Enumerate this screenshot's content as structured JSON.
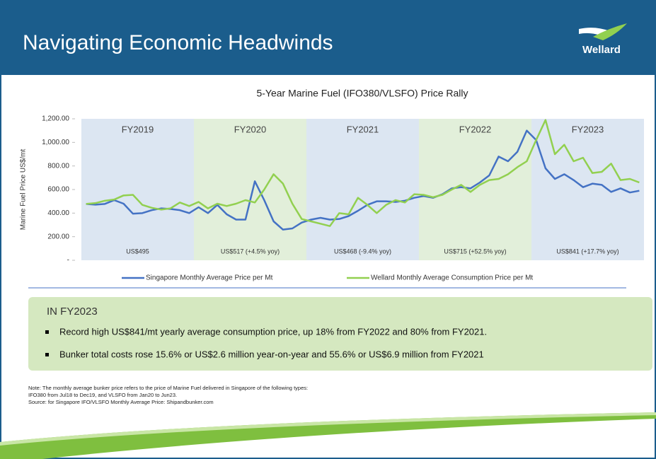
{
  "header": {
    "title": "Navigating Economic Headwinds",
    "logo": "Wellard"
  },
  "chart_data": {
    "type": "line",
    "title": "5-Year Marine Fuel (IFO380/VLSFO) Price Rally",
    "y_label": "Marine Fuel Price US$/mt",
    "categories": [
      null,
      null,
      null,
      null,
      null,
      null,
      null,
      null,
      null,
      null,
      null,
      null,
      null,
      null,
      null,
      null,
      null,
      null,
      null,
      null,
      null,
      null,
      null,
      null,
      null,
      null,
      null,
      null,
      null,
      null,
      null,
      null,
      null,
      null,
      null,
      null,
      null,
      null,
      null,
      null,
      null,
      null,
      null,
      null,
      null,
      null,
      null,
      null,
      null,
      null,
      null,
      null,
      null,
      null,
      null,
      null,
      null,
      null,
      null,
      null
    ],
    "series": [
      {
        "name": "Singapore Monthly Average Price per Mt",
        "color": "#4472c4",
        "values": [
          478,
          472,
          478,
          510,
          480,
          395,
          400,
          425,
          440,
          435,
          425,
          400,
          450,
          400,
          470,
          390,
          345,
          345,
          670,
          510,
          330,
          260,
          270,
          320,
          345,
          360,
          345,
          350,
          375,
          420,
          470,
          500,
          500,
          495,
          505,
          530,
          545,
          530,
          560,
          610,
          620,
          610,
          660,
          720,
          880,
          840,
          920,
          1100,
          1020,
          780,
          690,
          730,
          680,
          620,
          650,
          640,
          580,
          610,
          575,
          590
        ]
      },
      {
        "name": "Wellard Monthly Average Consumption Price per Mt",
        "color": "#92d050",
        "values": [
          478,
          485,
          505,
          515,
          550,
          555,
          470,
          445,
          430,
          440,
          490,
          460,
          495,
          440,
          480,
          460,
          480,
          510,
          490,
          600,
          730,
          650,
          480,
          350,
          330,
          310,
          290,
          400,
          390,
          530,
          470,
          400,
          470,
          510,
          490,
          560,
          555,
          535,
          555,
          600,
          640,
          580,
          640,
          680,
          690,
          730,
          790,
          840,
          1020,
          1190,
          900,
          980,
          840,
          870,
          740,
          750,
          820,
          680,
          690,
          660
        ]
      }
    ],
    "ylim": [
      0,
      1200
    ],
    "yticks": [
      {
        "value": 0,
        "label": "-"
      },
      {
        "value": 200,
        "label": "200.00"
      },
      {
        "value": 400,
        "label": "400.00"
      },
      {
        "value": 600,
        "label": "600.00"
      },
      {
        "value": 800,
        "label": "800.00"
      },
      {
        "value": 1000,
        "label": "1,000.00"
      },
      {
        "value": 1200,
        "label": "1,200.00"
      }
    ],
    "periods": [
      {
        "label": "FY2019",
        "note": "US$495",
        "color": "#dce6f2"
      },
      {
        "label": "FY2020",
        "note": "US$517 (+4.5% yoy)",
        "color": "#e2efda"
      },
      {
        "label": "FY2021",
        "note": "US$468 (-9.4% yoy)",
        "color": "#dce6f2"
      },
      {
        "label": "FY2022",
        "note": "US$715 (+52.5% yoy)",
        "color": "#e2efda"
      },
      {
        "label": "FY2023",
        "note": "US$841 (+17.7% yoy)",
        "color": "#dce6f2"
      }
    ],
    "legend": "bottom"
  },
  "highlights": {
    "heading": "IN FY2023",
    "items": [
      "Record high US$841/mt yearly average consumption price, up 18% from FY2022 and 80% from FY2021.",
      "Bunker total costs rose 15.6% or US$2.6 million year-on-year and 55.6% or US$6.9 million from FY2021"
    ]
  },
  "notes": [
    "Note: The monthly average bunker price refers to the price of Marine Fuel delivered in Singapore of the following types:",
    "IFO380 from Jul18 to Dec19, and VLSFO from Jan20 to Jun23.",
    "Source: for Singapore IFO/VLSFO Monthly Average Price: Shipandbunker.com"
  ]
}
